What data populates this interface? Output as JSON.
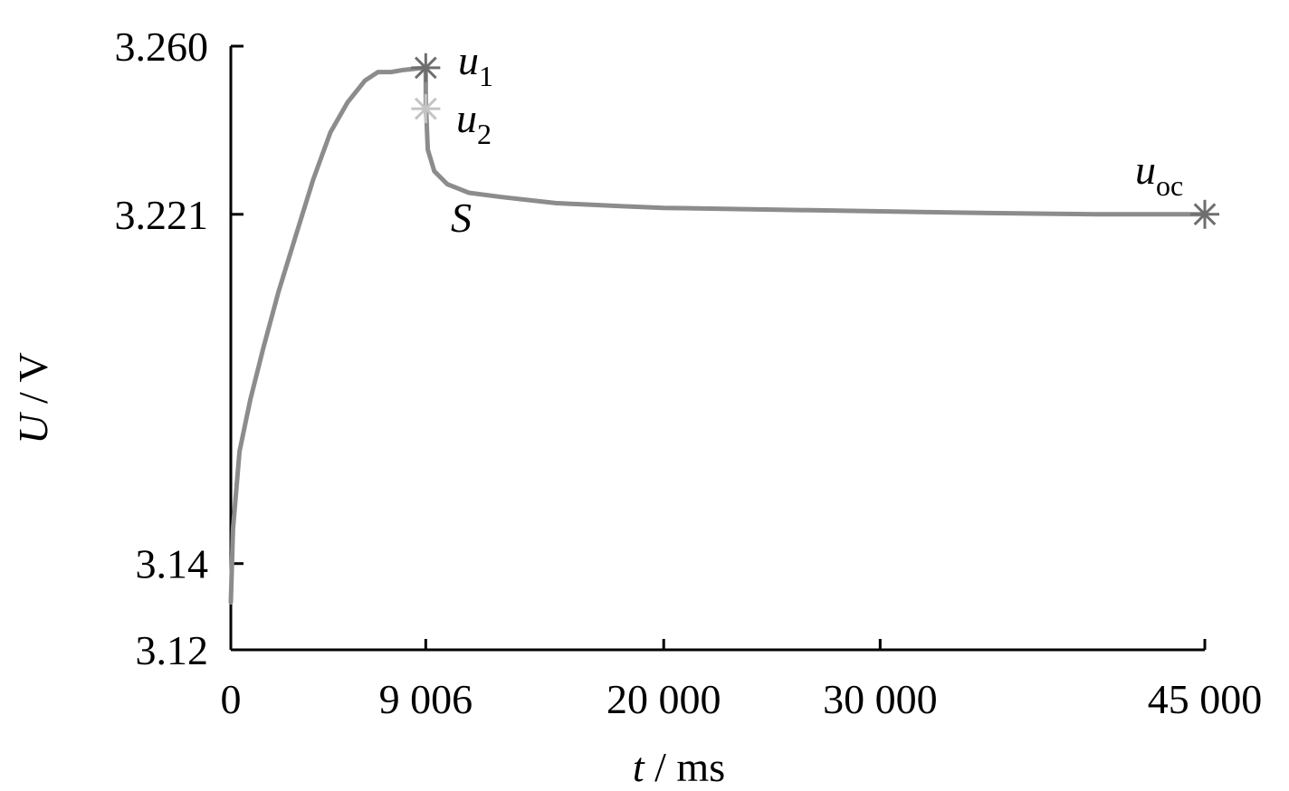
{
  "chart_data": {
    "type": "line",
    "title": "",
    "xlabel": {
      "var": "t",
      "unit": " / ms"
    },
    "ylabel": {
      "var": "U",
      "unit": " / V"
    },
    "xlim": [
      0,
      45000
    ],
    "ylim": [
      3.12,
      3.26
    ],
    "x_ticks": [
      {
        "value": 0,
        "label": "0"
      },
      {
        "value": 9006,
        "label": "9 006"
      },
      {
        "value": 20000,
        "label": "20 000"
      },
      {
        "value": 30000,
        "label": "30 000"
      },
      {
        "value": 45000,
        "label": "45 000"
      }
    ],
    "y_ticks": [
      {
        "value": 3.12,
        "label": "3.12"
      },
      {
        "value": 3.14,
        "label": "3.14"
      },
      {
        "value": 3.221,
        "label": "3.221"
      },
      {
        "value": 3.26,
        "label": "3.260"
      }
    ],
    "grid": false,
    "series": [
      {
        "color": "#8c8c8c",
        "x": [
          0,
          100,
          400,
          900,
          1500,
          2200,
          3000,
          3800,
          4600,
          5400,
          6200,
          6800,
          7400,
          8000,
          8600,
          9000,
          9006,
          9010,
          9100,
          9400,
          10000,
          11000,
          12500,
          15000,
          18000,
          20000,
          25000,
          30000,
          35000,
          40000,
          45000
        ],
        "y": [
          3.131,
          3.148,
          3.166,
          3.178,
          3.19,
          3.203,
          3.216,
          3.229,
          3.24,
          3.247,
          3.252,
          3.254,
          3.254,
          3.2545,
          3.2548,
          3.255,
          3.255,
          3.247,
          3.236,
          3.231,
          3.228,
          3.226,
          3.225,
          3.2236,
          3.2229,
          3.2225,
          3.2221,
          3.2217,
          3.2213,
          3.221,
          3.221
        ]
      }
    ],
    "markers": [
      {
        "id": "u1",
        "label": "u",
        "sub": "1",
        "x": 9006,
        "y": 3.255,
        "color": "#6e6e6e"
      },
      {
        "id": "u2",
        "label": "u",
        "sub": "2",
        "x": 9006,
        "y": 3.2455,
        "color": "#c4c4c4"
      },
      {
        "id": "uoc",
        "label": "u",
        "sub": "oc",
        "x": 45000,
        "y": 3.221,
        "color": "#6e6e6e"
      }
    ],
    "annotations": [
      {
        "id": "S",
        "text": "S"
      }
    ]
  }
}
